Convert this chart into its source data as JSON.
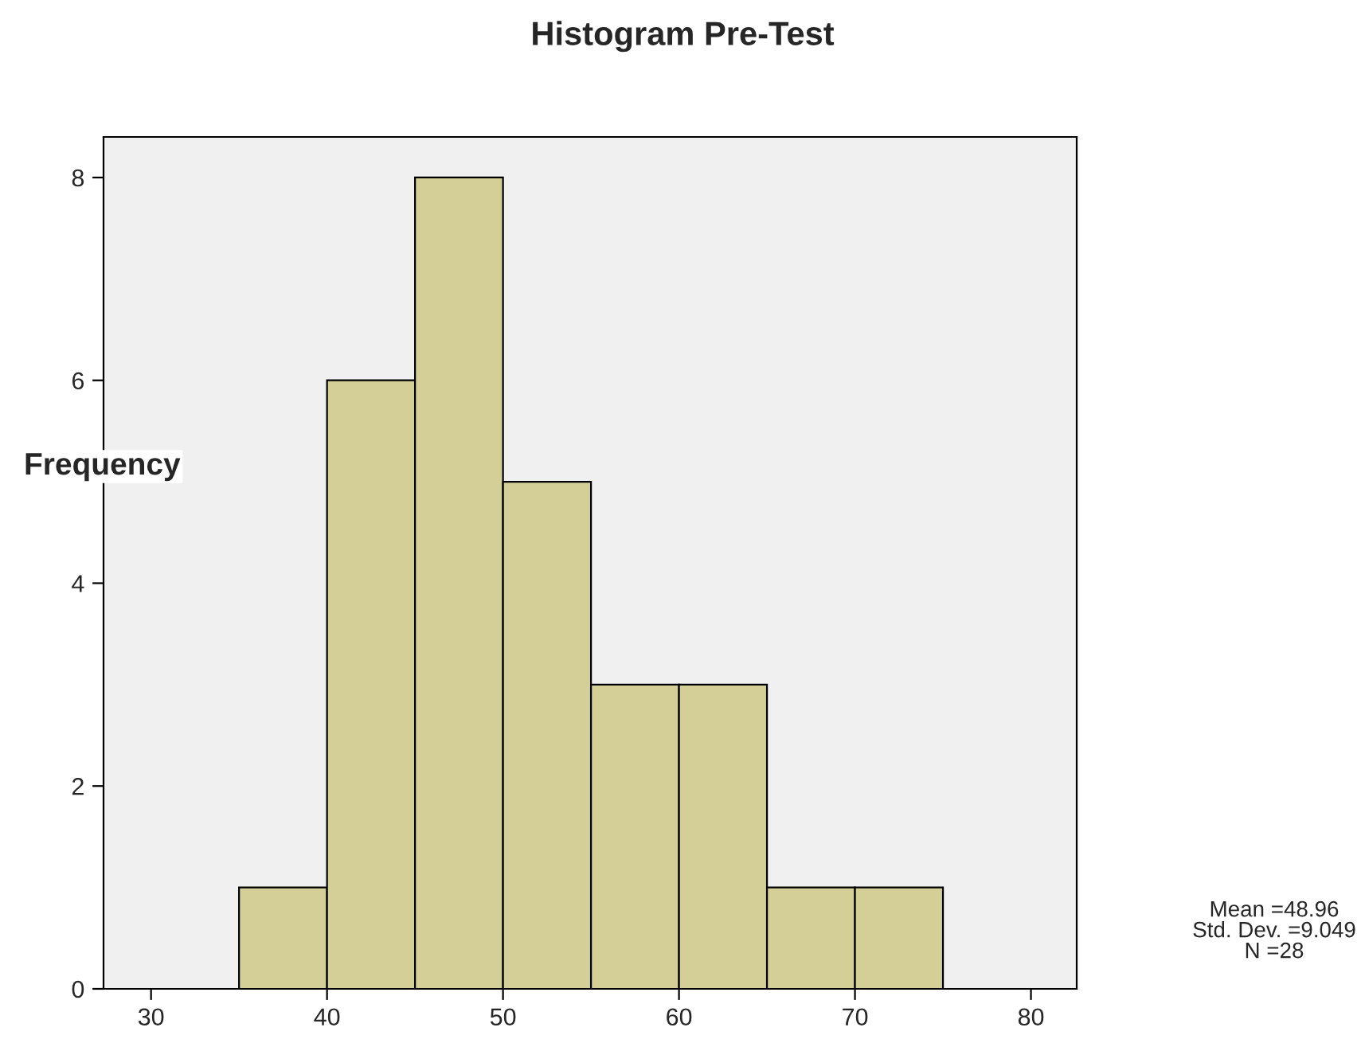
{
  "chart_data": {
    "type": "histogram",
    "title": "Histogram Pre-Test",
    "ylabel": "Frequency",
    "bins": [
      35,
      40,
      45,
      50,
      55,
      60,
      65,
      70,
      75
    ],
    "values": [
      1,
      6,
      8,
      5,
      3,
      3,
      1,
      1
    ],
    "color": "#d3cf97",
    "xlim": [
      27.3,
      82.6
    ],
    "xticks": [
      30,
      40,
      50,
      60,
      70,
      80
    ],
    "ylim": [
      0,
      8.4
    ],
    "yticks": [
      0,
      2,
      4,
      6,
      8
    ],
    "grid": false,
    "annotations": [
      "Mean =48.96",
      "Std. Dev. =9.049",
      "N =28"
    ]
  }
}
